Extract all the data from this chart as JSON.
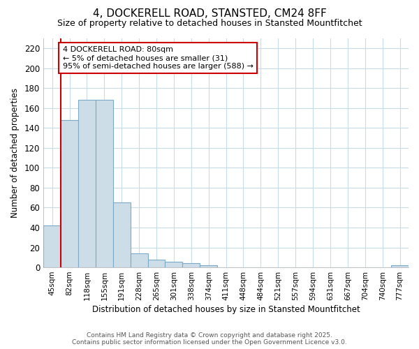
{
  "title1": "4, DOCKERELL ROAD, STANSTED, CM24 8FF",
  "title2": "Size of property relative to detached houses in Stansted Mountfitchet",
  "xlabel": "Distribution of detached houses by size in Stansted Mountfitchet",
  "ylabel": "Number of detached properties",
  "categories": [
    "45sqm",
    "82sqm",
    "118sqm",
    "155sqm",
    "191sqm",
    "228sqm",
    "265sqm",
    "301sqm",
    "338sqm",
    "374sqm",
    "411sqm",
    "448sqm",
    "484sqm",
    "521sqm",
    "557sqm",
    "594sqm",
    "631sqm",
    "667sqm",
    "704sqm",
    "740sqm",
    "777sqm"
  ],
  "values": [
    42,
    148,
    168,
    168,
    65,
    14,
    8,
    6,
    4,
    2,
    0,
    0,
    0,
    0,
    0,
    0,
    0,
    0,
    0,
    0,
    2
  ],
  "bar_color": "#ccdde8",
  "bar_edge_color": "#7aaac8",
  "red_line_index": 1,
  "annotation_text": "4 DOCKERELL ROAD: 80sqm\n← 5% of detached houses are smaller (31)\n95% of semi-detached houses are larger (588) →",
  "annotation_box_color": "#ffffff",
  "annotation_edge_color": "#cc0000",
  "ylim": [
    0,
    230
  ],
  "yticks": [
    0,
    20,
    40,
    60,
    80,
    100,
    120,
    140,
    160,
    180,
    200,
    220
  ],
  "footer1": "Contains HM Land Registry data © Crown copyright and database right 2025.",
  "footer2": "Contains public sector information licensed under the Open Government Licence v3.0.",
  "background_color": "#ffffff",
  "grid_color": "#c8dce8",
  "title1_fontsize": 11,
  "title2_fontsize": 9
}
